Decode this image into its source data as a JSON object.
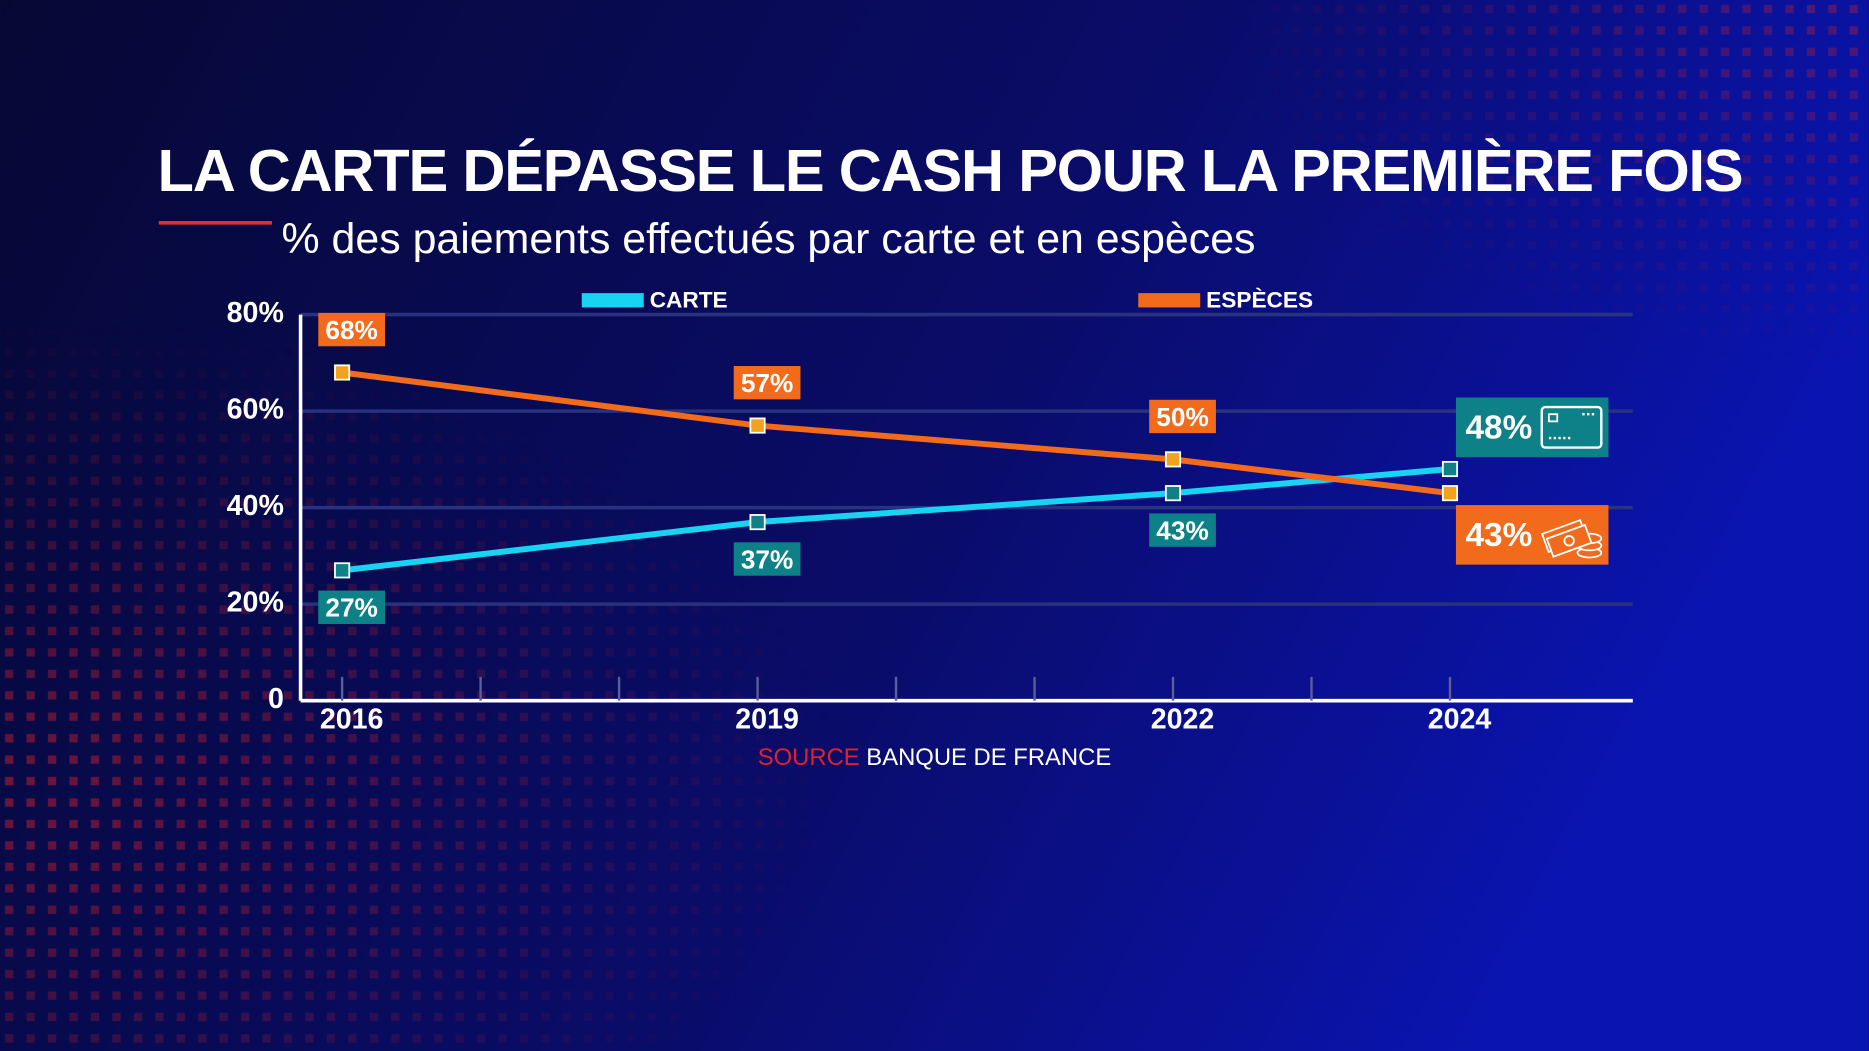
{
  "chart_data": {
    "type": "line",
    "title": "LA CARTE DÉPASSE LE CASH POUR LA PREMIÈRE FOIS",
    "subtitle": "% des paiements effectués par carte et en espèces",
    "x": [
      2016,
      2019,
      2022,
      2024
    ],
    "series": [
      {
        "name": "CARTE",
        "color": "#19d3f2",
        "label_color": "#0e8087",
        "values": [
          27,
          37,
          43,
          48
        ],
        "value_labels": [
          "27%",
          "37%",
          "43%",
          "48%"
        ]
      },
      {
        "name": "ESPÈCES",
        "color": "#f26a1b",
        "label_color": "#f26a1b",
        "values": [
          68,
          57,
          50,
          43
        ],
        "value_labels": [
          "68%",
          "57%",
          "50%",
          "43%"
        ]
      }
    ],
    "xlim": [
      2015.7,
      2025.32
    ],
    "xticks": [
      2016,
      2019,
      2022,
      2024
    ],
    "xminor_ticks": [
      2017,
      2018,
      2020,
      2021,
      2023
    ],
    "ylim": [
      0,
      80
    ],
    "yticks": [
      0,
      {
        "value": 20,
        "label": "20%"
      },
      {
        "value": 40,
        "label": "40%"
      },
      {
        "value": 60,
        "label": "60%"
      },
      {
        "value": 80,
        "label": "80%"
      }
    ],
    "grid": true,
    "source_label": "SOURCE",
    "source": "BANQUE DE FRANCE"
  }
}
